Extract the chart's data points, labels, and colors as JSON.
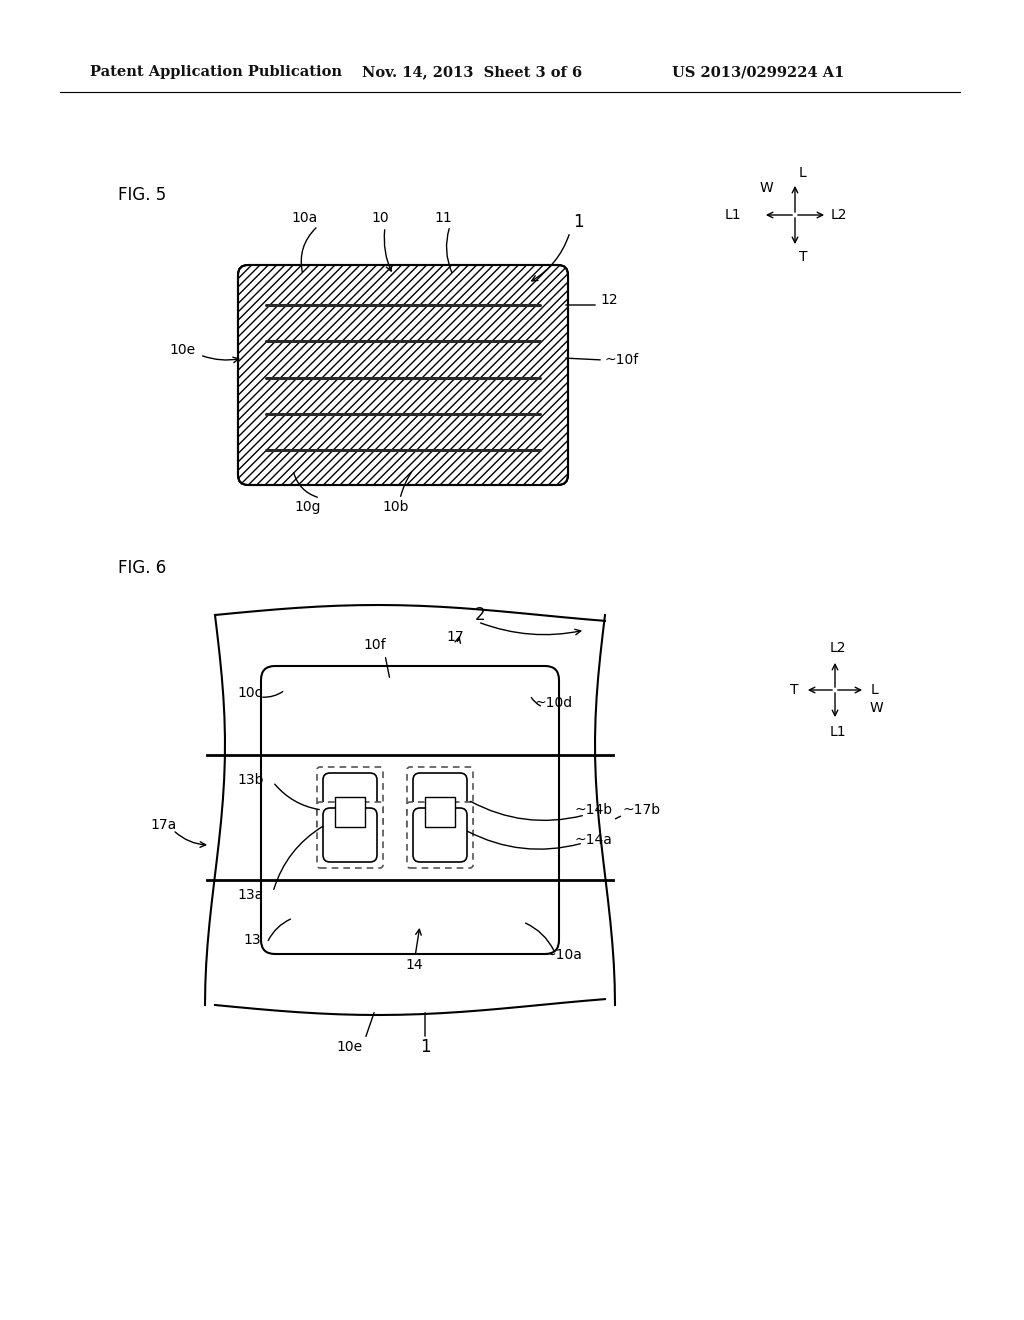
{
  "bg_color": "#ffffff",
  "header_text1": "Patent Application Publication",
  "header_text2": "Nov. 14, 2013  Sheet 3 of 6",
  "header_text3": "US 2013/0299224 A1",
  "fig5_label": "FIG. 5",
  "fig6_label": "FIG. 6"
}
